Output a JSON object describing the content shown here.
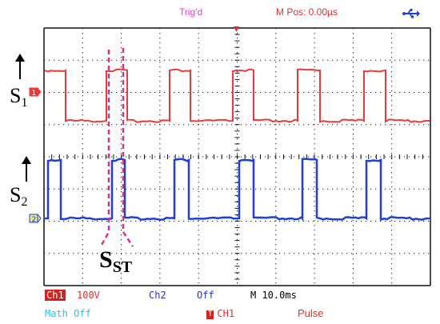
{
  "header": {
    "trig_status": "Trig'd",
    "m_pos": "M Pos: 0.00µs",
    "usb_icon": "usb-icon"
  },
  "annotations": {
    "s1_main": "S",
    "s1_sub": "1",
    "s2_main": "S",
    "s2_sub": "2",
    "sst_main": "S",
    "sst_sub": "ST"
  },
  "footer": {
    "ch1_label": "Ch1",
    "ch1_scale": "100V",
    "ch2_label": "Ch2",
    "ch2_state": "Off",
    "timebase": "M 10.0ms",
    "math": "Math Off",
    "trigger_icon": "T",
    "trigger_source": "CH1",
    "trigger_type": "Pulse"
  },
  "channel_markers": {
    "ch1": "1",
    "ch2": "2"
  },
  "colors": {
    "ch1": "#e83c3c",
    "ch2": "#1f3ee0",
    "grid": "#111111",
    "header_magenta": "#e040e0",
    "header_red": "#e03030",
    "annotation_pink": "#d6338a",
    "math_cyan": "#22c8e8",
    "ch2_label_blue": "#2030d0"
  }
}
